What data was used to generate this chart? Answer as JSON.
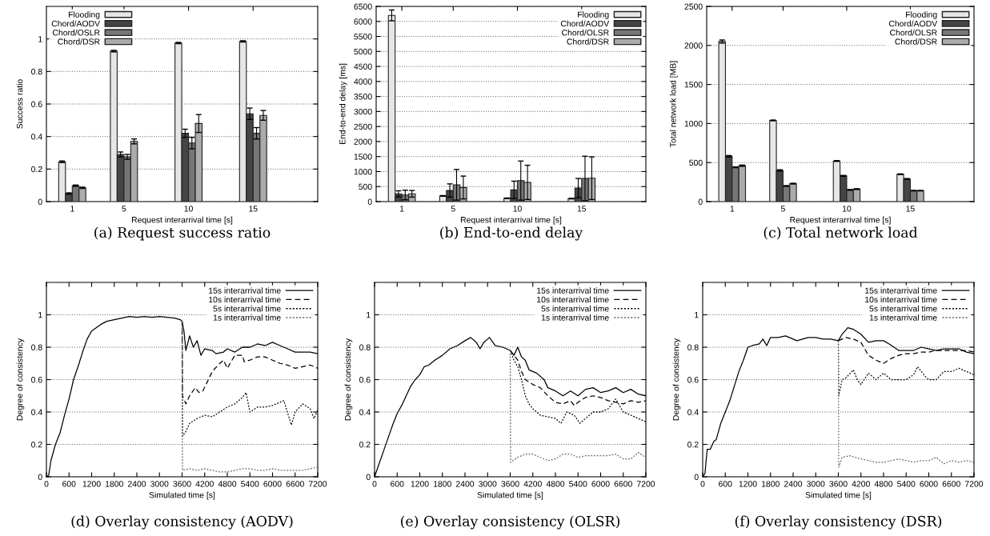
{
  "chart_data": [
    {
      "type": "bar",
      "title": "(a) Request success ratio",
      "xlabel": "Request interarrival time [s]",
      "ylabel": "Success ratio",
      "x": [
        1,
        5,
        10,
        15
      ],
      "xlim": [
        -1,
        20
      ],
      "xticks": [
        1,
        5,
        10,
        15
      ],
      "ylim": [
        0,
        1.2
      ],
      "yticks": [
        0,
        0.2,
        0.4,
        0.6,
        0.8,
        1
      ],
      "grid": "y",
      "legend": "top left",
      "series": [
        {
          "name": "Flooding",
          "color": "#e6e6e6",
          "values": [
            0.245,
            0.925,
            0.975,
            0.985
          ],
          "errors": [
            0.005,
            0.005,
            0.004,
            0.004
          ]
        },
        {
          "name": "Chord/AODV",
          "color": "#454545",
          "values": [
            0.05,
            0.29,
            0.42,
            0.54
          ],
          "errors": [
            0.004,
            0.015,
            0.025,
            0.035
          ]
        },
        {
          "name": "Chord/OSLR",
          "color": "#767676",
          "values": [
            0.098,
            0.275,
            0.36,
            0.42
          ],
          "errors": [
            0.004,
            0.015,
            0.035,
            0.035
          ]
        },
        {
          "name": "Chord/DSR",
          "color": "#ababab",
          "values": [
            0.085,
            0.37,
            0.48,
            0.53
          ],
          "errors": [
            0.004,
            0.015,
            0.055,
            0.03
          ]
        }
      ]
    },
    {
      "type": "bar",
      "title": "(b) End-to-end delay",
      "xlabel": "Request interarrival time [s]",
      "ylabel": "End-to-end delay [ms]",
      "x": [
        1,
        5,
        10,
        15
      ],
      "xlim": [
        -1,
        20
      ],
      "xticks": [
        1,
        5,
        10,
        15
      ],
      "ylim": [
        0,
        6500
      ],
      "yticks": [
        0,
        500,
        1000,
        1500,
        2000,
        2500,
        3000,
        3500,
        4000,
        4500,
        5000,
        5500,
        6000,
        6500
      ],
      "grid": "y",
      "legend": "top right",
      "series": [
        {
          "name": "Flooding",
          "color": "#e6e6e6",
          "values": [
            6200,
            190,
            110,
            100
          ],
          "errors": [
            180,
            10,
            10,
            10
          ]
        },
        {
          "name": "Chord/AODV",
          "color": "#454545",
          "values": [
            260,
            370,
            390,
            450
          ],
          "errors": [
            100,
            220,
            290,
            320
          ]
        },
        {
          "name": "Chord/OLSR",
          "color": "#767676",
          "values": [
            220,
            560,
            700,
            770
          ],
          "errors": [
            160,
            510,
            650,
            740
          ]
        },
        {
          "name": "Chord/DSR",
          "color": "#ababab",
          "values": [
            260,
            470,
            640,
            780
          ],
          "errors": [
            110,
            380,
            570,
            710
          ]
        }
      ]
    },
    {
      "type": "bar",
      "title": "(c) Total network load",
      "xlabel": "Request interarrival time [s]",
      "ylabel": "Total network load [MB]",
      "x": [
        1,
        5,
        10,
        15
      ],
      "xlim": [
        -1,
        20
      ],
      "xticks": [
        1,
        5,
        10,
        15
      ],
      "ylim": [
        0,
        2500
      ],
      "yticks": [
        0,
        500,
        1000,
        1500,
        2000,
        2500
      ],
      "grid": "y",
      "legend": "top right",
      "series": [
        {
          "name": "Flooding",
          "color": "#e6e6e6",
          "values": [
            2050,
            1040,
            520,
            350
          ],
          "errors": [
            20,
            5,
            5,
            5
          ]
        },
        {
          "name": "Chord/AODV",
          "color": "#454545",
          "values": [
            580,
            400,
            330,
            290
          ],
          "errors": [
            10,
            8,
            5,
            5
          ]
        },
        {
          "name": "Chord/OLSR",
          "color": "#767676",
          "values": [
            440,
            200,
            150,
            140
          ],
          "errors": [
            5,
            5,
            5,
            3
          ]
        },
        {
          "name": "Chord/DSR",
          "color": "#ababab",
          "values": [
            460,
            230,
            160,
            140
          ],
          "errors": [
            8,
            5,
            5,
            3
          ]
        }
      ]
    },
    {
      "type": "line",
      "title": "(d) Overlay consistency (AODV)",
      "xlabel": "Simulated time [s]",
      "ylabel": "Degree of consistency",
      "xlim": [
        0,
        7200
      ],
      "xticks": [
        0,
        600,
        1200,
        1800,
        2400,
        3000,
        3600,
        4200,
        4800,
        5400,
        6000,
        6600,
        7200
      ],
      "ylim": [
        0,
        1.2
      ],
      "yticks": [
        0,
        0.2,
        0.4,
        0.6,
        0.8,
        1
      ],
      "grid": "y",
      "legend": "top right",
      "series": [
        {
          "name": "15s interarrival time",
          "color": "#000000",
          "line_style": "solid",
          "x": [
            0,
            60,
            120,
            240,
            360,
            480,
            600,
            720,
            840,
            960,
            1080,
            1200,
            1320,
            1440,
            1600,
            1800,
            2000,
            2200,
            2400,
            2600,
            2800,
            3000,
            3200,
            3400,
            3550,
            3600,
            3650,
            3700,
            3800,
            3900,
            4000,
            4100,
            4200,
            4400,
            4500,
            4700,
            4800,
            5000,
            5200,
            5400,
            5600,
            5800,
            6000,
            6200,
            6400,
            6600,
            6800,
            7000,
            7200
          ],
          "values": [
            0,
            0.01,
            0.1,
            0.2,
            0.27,
            0.38,
            0.48,
            0.6,
            0.68,
            0.77,
            0.85,
            0.9,
            0.92,
            0.94,
            0.96,
            0.97,
            0.98,
            0.99,
            0.985,
            0.99,
            0.985,
            0.99,
            0.985,
            0.98,
            0.97,
            0.96,
            0.9,
            0.78,
            0.87,
            0.8,
            0.84,
            0.75,
            0.79,
            0.78,
            0.76,
            0.77,
            0.79,
            0.77,
            0.8,
            0.8,
            0.82,
            0.81,
            0.83,
            0.81,
            0.79,
            0.77,
            0.77,
            0.77,
            0.76
          ]
        },
        {
          "name": "10s interarrival time",
          "color": "#000000",
          "line_style": "dashed",
          "x": [
            3600,
            3610,
            3700,
            3800,
            3950,
            4050,
            4150,
            4300,
            4400,
            4600,
            4700,
            4800,
            5000,
            5200,
            5250,
            5400,
            5600,
            5800,
            6000,
            6200,
            6400,
            6600,
            6800,
            7000,
            7200
          ],
          "values": [
            0.96,
            0.5,
            0.45,
            0.5,
            0.55,
            0.52,
            0.53,
            0.6,
            0.65,
            0.7,
            0.72,
            0.67,
            0.75,
            0.75,
            0.71,
            0.72,
            0.74,
            0.74,
            0.72,
            0.7,
            0.69,
            0.67,
            0.68,
            0.69,
            0.67
          ]
        },
        {
          "name": "5s interarrival time",
          "color": "#000000",
          "line_style": "dotted",
          "x": [
            3600,
            3610,
            3700,
            3800,
            4000,
            4200,
            4400,
            4600,
            4800,
            5000,
            5200,
            5300,
            5400,
            5600,
            5800,
            6000,
            6200,
            6300,
            6500,
            6600,
            6800,
            7000,
            7100,
            7200
          ],
          "values": [
            0.96,
            0.25,
            0.28,
            0.33,
            0.36,
            0.38,
            0.37,
            0.4,
            0.43,
            0.45,
            0.49,
            0.52,
            0.4,
            0.43,
            0.43,
            0.44,
            0.46,
            0.47,
            0.32,
            0.4,
            0.45,
            0.42,
            0.36,
            0.41
          ]
        },
        {
          "name": "1s interarrival time",
          "color": "#666666",
          "line_style": "dotted",
          "x": [
            3600,
            3610,
            3800,
            4000,
            4200,
            4400,
            4600,
            4800,
            5000,
            5200,
            5400,
            5600,
            5800,
            6000,
            6200,
            6400,
            6600,
            6800,
            7000,
            7200
          ],
          "values": [
            0.96,
            0.04,
            0.05,
            0.04,
            0.05,
            0.04,
            0.03,
            0.03,
            0.04,
            0.05,
            0.05,
            0.04,
            0.04,
            0.05,
            0.04,
            0.04,
            0.04,
            0.04,
            0.05,
            0.06
          ]
        }
      ]
    },
    {
      "type": "line",
      "title": "(e) Overlay consistency (OLSR)",
      "xlabel": "Simulated time [s]",
      "ylabel": "Degree of consistency",
      "xlim": [
        0,
        7200
      ],
      "xticks": [
        0,
        600,
        1200,
        1800,
        2400,
        3000,
        3600,
        4200,
        4800,
        5400,
        6000,
        6600,
        7200
      ],
      "ylim": [
        0,
        1.2
      ],
      "yticks": [
        0,
        0.2,
        0.4,
        0.6,
        0.8,
        1
      ],
      "grid": "y",
      "legend": "top right",
      "series": [
        {
          "name": "15s interarrival time",
          "color": "#000000",
          "line_style": "solid",
          "x": [
            0,
            120,
            240,
            360,
            480,
            600,
            720,
            840,
            960,
            1080,
            1200,
            1320,
            1440,
            1600,
            1800,
            2000,
            2200,
            2400,
            2550,
            2700,
            2800,
            2900,
            3050,
            3200,
            3400,
            3600,
            3700,
            3800,
            3900,
            4000,
            4100,
            4300,
            4500,
            4600,
            4800,
            5000,
            5200,
            5400,
            5600,
            5800,
            6000,
            6200,
            6400,
            6600,
            6800,
            7000,
            7200
          ],
          "values": [
            0,
            0.08,
            0.16,
            0.24,
            0.32,
            0.39,
            0.44,
            0.5,
            0.56,
            0.6,
            0.63,
            0.68,
            0.69,
            0.72,
            0.75,
            0.79,
            0.81,
            0.84,
            0.86,
            0.83,
            0.79,
            0.83,
            0.86,
            0.81,
            0.8,
            0.78,
            0.75,
            0.8,
            0.74,
            0.72,
            0.66,
            0.64,
            0.6,
            0.55,
            0.53,
            0.5,
            0.53,
            0.5,
            0.54,
            0.55,
            0.52,
            0.53,
            0.55,
            0.52,
            0.54,
            0.51,
            0.5
          ]
        },
        {
          "name": "10s interarrival time",
          "color": "#000000",
          "line_style": "dashed",
          "x": [
            3600,
            3800,
            3900,
            4000,
            4200,
            4400,
            4600,
            4800,
            5000,
            5200,
            5300,
            5400,
            5600,
            5800,
            6000,
            6200,
            6400,
            6600,
            6800,
            7000,
            7200
          ],
          "values": [
            0.78,
            0.72,
            0.65,
            0.6,
            0.57,
            0.55,
            0.5,
            0.46,
            0.45,
            0.47,
            0.44,
            0.46,
            0.49,
            0.5,
            0.49,
            0.47,
            0.46,
            0.45,
            0.47,
            0.46,
            0.47
          ]
        },
        {
          "name": "5s interarrival time",
          "color": "#000000",
          "line_style": "dotted",
          "x": [
            3600,
            3700,
            3800,
            3900,
            4000,
            4100,
            4200,
            4400,
            4600,
            4800,
            4950,
            5100,
            5300,
            5450,
            5600,
            5800,
            6000,
            6200,
            6400,
            6600,
            6800,
            7000,
            7200
          ],
          "values": [
            0.78,
            0.72,
            0.68,
            0.6,
            0.5,
            0.45,
            0.42,
            0.38,
            0.37,
            0.36,
            0.33,
            0.4,
            0.38,
            0.33,
            0.36,
            0.4,
            0.4,
            0.42,
            0.48,
            0.4,
            0.38,
            0.36,
            0.34
          ]
        },
        {
          "name": "1s interarrival time",
          "color": "#666666",
          "line_style": "dotted",
          "x": [
            3600,
            3610,
            3800,
            4000,
            4200,
            4400,
            4600,
            4800,
            5000,
            5200,
            5400,
            5600,
            5800,
            6000,
            6200,
            6400,
            6600,
            6800,
            7000,
            7200
          ],
          "values": [
            0.78,
            0.09,
            0.12,
            0.14,
            0.14,
            0.12,
            0.1,
            0.11,
            0.14,
            0.14,
            0.12,
            0.13,
            0.13,
            0.13,
            0.13,
            0.14,
            0.11,
            0.11,
            0.15,
            0.12
          ]
        }
      ]
    },
    {
      "type": "line",
      "title": "(f) Overlay consistency (DSR)",
      "xlabel": "Simulated time [s]",
      "ylabel": "Degree of consistency",
      "xlim": [
        0,
        7200
      ],
      "xticks": [
        0,
        600,
        1200,
        1800,
        2400,
        3000,
        3600,
        4200,
        4800,
        5400,
        6000,
        6600,
        7200
      ],
      "ylim": [
        0,
        1.2
      ],
      "yticks": [
        0,
        0.2,
        0.4,
        0.6,
        0.8,
        1
      ],
      "grid": "y",
      "legend": "top right",
      "series": [
        {
          "name": "15s interarrival time",
          "color": "#000000",
          "line_style": "solid",
          "x": [
            0,
            60,
            120,
            200,
            300,
            360,
            480,
            600,
            720,
            840,
            960,
            1080,
            1200,
            1320,
            1500,
            1600,
            1700,
            1800,
            2000,
            2200,
            2400,
            2500,
            2800,
            3000,
            3200,
            3400,
            3600,
            3700,
            3850,
            4000,
            4200,
            4400,
            4600,
            4800,
            4950,
            5200,
            5400,
            5600,
            5800,
            6000,
            6200,
            6400,
            6600,
            6800,
            7000,
            7200
          ],
          "values": [
            0,
            0.02,
            0.17,
            0.17,
            0.22,
            0.23,
            0.33,
            0.4,
            0.47,
            0.56,
            0.65,
            0.72,
            0.8,
            0.81,
            0.82,
            0.85,
            0.81,
            0.86,
            0.86,
            0.87,
            0.85,
            0.84,
            0.86,
            0.86,
            0.85,
            0.85,
            0.84,
            0.88,
            0.92,
            0.91,
            0.88,
            0.83,
            0.84,
            0.84,
            0.82,
            0.78,
            0.78,
            0.78,
            0.8,
            0.79,
            0.78,
            0.79,
            0.79,
            0.79,
            0.77,
            0.76
          ]
        },
        {
          "name": "10s interarrival time",
          "color": "#000000",
          "line_style": "dashed",
          "x": [
            3600,
            3800,
            4000,
            4200,
            4400,
            4600,
            4800,
            5000,
            5200,
            5400,
            5600,
            5800,
            6000,
            6200,
            6400,
            6600,
            6800,
            7000,
            7200
          ],
          "values": [
            0.84,
            0.86,
            0.85,
            0.83,
            0.75,
            0.72,
            0.7,
            0.73,
            0.75,
            0.76,
            0.76,
            0.77,
            0.77,
            0.78,
            0.78,
            0.78,
            0.78,
            0.78,
            0.77
          ]
        },
        {
          "name": "5s interarrival time",
          "color": "#000000",
          "line_style": "dotted",
          "x": [
            3600,
            3610,
            3700,
            3800,
            4000,
            4100,
            4200,
            4400,
            4600,
            4800,
            5000,
            5200,
            5400,
            5600,
            5700,
            5900,
            6000,
            6200,
            6400,
            6600,
            6800,
            7000,
            7200
          ],
          "values": [
            0.84,
            0.5,
            0.6,
            0.61,
            0.66,
            0.6,
            0.57,
            0.64,
            0.6,
            0.64,
            0.6,
            0.6,
            0.6,
            0.63,
            0.68,
            0.62,
            0.6,
            0.6,
            0.65,
            0.65,
            0.67,
            0.65,
            0.63
          ]
        },
        {
          "name": "1s interarrival time",
          "color": "#666666",
          "line_style": "dotted",
          "x": [
            3600,
            3610,
            3700,
            3900,
            4200,
            4400,
            4600,
            4800,
            5000,
            5200,
            5400,
            5600,
            5800,
            6000,
            6200,
            6400,
            6600,
            6800,
            7000,
            7200
          ],
          "values": [
            0.84,
            0.06,
            0.12,
            0.13,
            0.11,
            0.1,
            0.09,
            0.09,
            0.1,
            0.11,
            0.1,
            0.09,
            0.1,
            0.1,
            0.12,
            0.08,
            0.1,
            0.09,
            0.1,
            0.09
          ]
        }
      ]
    }
  ]
}
